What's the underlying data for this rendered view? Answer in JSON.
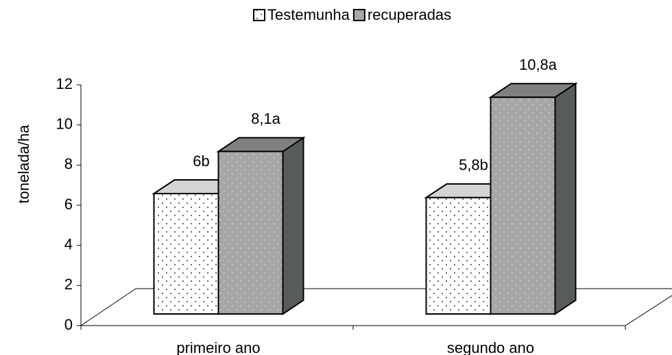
{
  "chart_data": {
    "type": "bar3d",
    "y_label": "tonelada/ha",
    "categories": [
      "primeiro ano",
      "segundo ano"
    ],
    "series": [
      {
        "name": "Testemunha",
        "color": "#ffffff",
        "values": [
          6,
          5.8
        ],
        "value_labels": [
          "6b",
          "5,8b"
        ]
      },
      {
        "name": "recuperadas",
        "color": "#a6a6a6",
        "values": [
          8.1,
          10.8
        ],
        "value_labels": [
          "8,1a",
          "10,8a"
        ]
      }
    ],
    "ylim": [
      0,
      12
    ],
    "yticks": [
      0,
      2,
      4,
      6,
      8,
      10,
      12
    ],
    "legend": "top"
  }
}
